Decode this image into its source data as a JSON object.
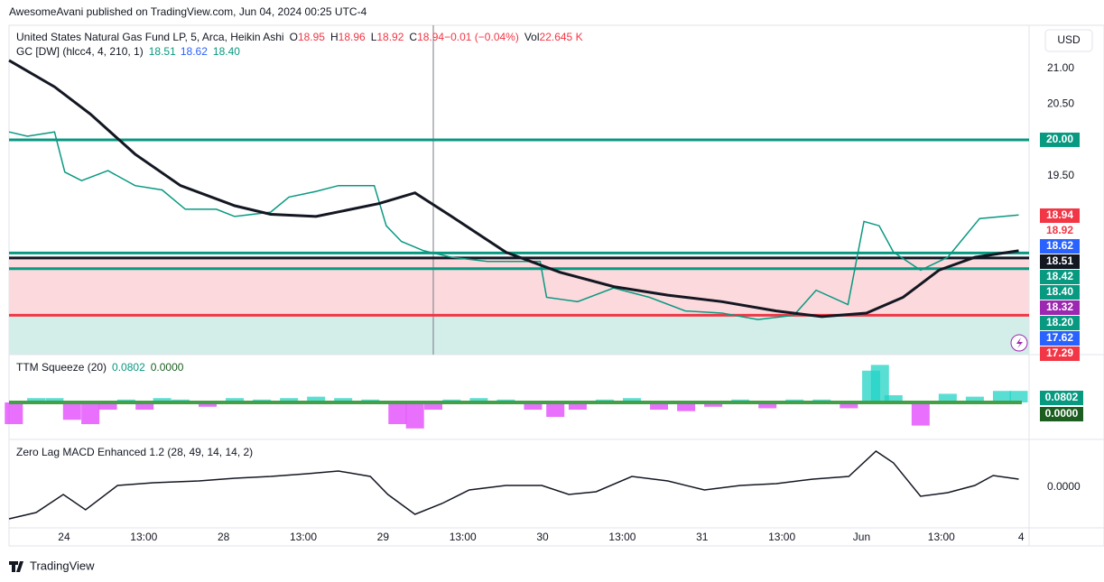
{
  "header": {
    "published": "AwesomeAvani published on TradingView.com, Jun 04, 2024 00:25 UTC-4",
    "currency": "USD",
    "footer": "TradingView"
  },
  "chart_data": [
    {
      "type": "line",
      "title": "United States Natural Gas Fund LP, 5, Arca, Heikin Ashi",
      "quote": [
        {
          "label": "O",
          "value": "18.95"
        },
        {
          "label": "H",
          "value": "18.96"
        },
        {
          "label": "L",
          "value": "18.92"
        },
        {
          "label": "C",
          "value": "18.94"
        },
        {
          "label": "",
          "value": "−0.01 (−0.04%)"
        },
        {
          "label": "Vol",
          "value": "22.645 K"
        }
      ],
      "indicator": {
        "title": "GC [DW] (hlcc4, 4, 210, 1)",
        "values": [
          "18.51",
          "18.62",
          "18.40"
        ],
        "colors": [
          "#089981",
          "#2962ff",
          "#089981"
        ]
      },
      "xlim": [
        -0.69,
        12.1
      ],
      "xticks": [
        {
          "value": 0,
          "label": "24"
        },
        {
          "value": 1,
          "label": "13:00"
        },
        {
          "value": 2,
          "label": "28"
        },
        {
          "value": 3,
          "label": "13:00"
        },
        {
          "value": 4,
          "label": "29"
        },
        {
          "value": 5,
          "label": "13:00"
        },
        {
          "value": 6,
          "label": "30"
        },
        {
          "value": 7,
          "label": "13:00"
        },
        {
          "value": 8,
          "label": "31"
        },
        {
          "value": 9,
          "label": "13:00"
        },
        {
          "value": 10,
          "label": "Jun"
        },
        {
          "value": 11,
          "label": "13:00"
        },
        {
          "value": 12,
          "label": "4"
        }
      ],
      "ylim": [
        17.0,
        21.6
      ],
      "yticks": [
        {
          "value": 21,
          "label": "21.00"
        },
        {
          "value": 20.5,
          "label": "20.50"
        },
        {
          "value": 19.5,
          "label": "19.50"
        }
      ],
      "levels": [
        {
          "value": 20.0,
          "label": "20.00",
          "color": "#089981"
        },
        {
          "value": 18.42,
          "color": "#089981"
        },
        {
          "value": 18.2,
          "color": "#089981"
        },
        {
          "value": 18.35,
          "color": "#131722"
        },
        {
          "value": 17.55,
          "color": "#f23645"
        }
      ],
      "price_labels": [
        {
          "text": "18.94",
          "bg": "#f23645",
          "fg": "#ffffff"
        },
        {
          "text": "18.92",
          "bg": "#ffffff",
          "fg": "#f23645"
        },
        {
          "text": "18.62",
          "bg": "#2962ff",
          "fg": "#ffffff"
        },
        {
          "text": "18.51",
          "bg": "#131722",
          "fg": "#ffffff"
        },
        {
          "text": "18.42",
          "bg": "#089981",
          "fg": "#ffffff"
        },
        {
          "text": "18.40",
          "bg": "#089981",
          "fg": "#ffffff"
        },
        {
          "text": "18.32",
          "bg": "#9c27b0",
          "fg": "#ffffff"
        },
        {
          "text": "18.20",
          "bg": "#089981",
          "fg": "#ffffff"
        },
        {
          "text": "17.62",
          "bg": "#2962ff",
          "fg": "#ffffff"
        },
        {
          "text": "17.29",
          "bg": "#f23645",
          "fg": "#ffffff"
        }
      ],
      "series": [
        {
          "color": "#089981",
          "x": [
            -0.69,
            -0.46,
            -0.12,
            0.01,
            0.22,
            0.55,
            0.89,
            1.23,
            1.52,
            1.91,
            2.14,
            2.59,
            2.82,
            3.16,
            3.44,
            3.89,
            4.04,
            4.23,
            4.51,
            4.86,
            5.31,
            5.97,
            6.05,
            6.44,
            6.89,
            7.34,
            7.79,
            8.25,
            8.7,
            9.15,
            9.43,
            9.83,
            10.03,
            10.22,
            10.4,
            10.74,
            11.08,
            11.48,
            11.97
          ],
          "values": [
            20.11,
            20.05,
            20.11,
            19.55,
            19.43,
            19.57,
            19.36,
            19.3,
            19.03,
            19.03,
            18.93,
            18.99,
            19.2,
            19.28,
            19.36,
            19.36,
            18.8,
            18.58,
            18.45,
            18.36,
            18.3,
            18.3,
            17.8,
            17.74,
            17.93,
            17.8,
            17.61,
            17.58,
            17.49,
            17.55,
            17.9,
            17.7,
            18.86,
            18.8,
            18.43,
            18.18,
            18.36,
            18.9,
            18.95
          ]
        },
        {
          "color": "#131722",
          "x": [
            -0.69,
            -0.12,
            0.33,
            0.89,
            1.46,
            2.14,
            2.59,
            3.16,
            3.95,
            4.4,
            4.86,
            5.54,
            6.22,
            6.89,
            7.57,
            8.25,
            8.93,
            9.5,
            10.06,
            10.52,
            10.97,
            11.42,
            11.97
          ],
          "values": [
            21.11,
            20.74,
            20.36,
            19.8,
            19.36,
            19.08,
            18.96,
            18.93,
            19.11,
            19.26,
            18.93,
            18.43,
            18.15,
            17.95,
            17.83,
            17.74,
            17.61,
            17.53,
            17.58,
            17.8,
            18.18,
            18.36,
            18.45
          ]
        }
      ]
    },
    {
      "type": "bar",
      "title": "TTM Squeeze (20)",
      "legend_values": [
        {
          "text": "0.0802",
          "color": "#089981"
        },
        {
          "text": "0.0000",
          "color": "#1b5e20"
        }
      ],
      "up_color": "#22d3c5",
      "down_color": "#e040fb",
      "ylim": [
        -0.256,
        0.3
      ],
      "x": [
        -0.63,
        -0.35,
        -0.12,
        0.1,
        0.33,
        0.55,
        0.78,
        1.01,
        1.23,
        1.46,
        1.8,
        2.14,
        2.48,
        2.82,
        3.16,
        3.5,
        3.84,
        4.18,
        4.4,
        4.63,
        4.86,
        5.2,
        5.54,
        5.88,
        6.16,
        6.44,
        6.78,
        7.12,
        7.46,
        7.8,
        8.14,
        8.48,
        8.82,
        9.16,
        9.5,
        9.84,
        10.12,
        10.23,
        10.4,
        10.74,
        11.08,
        11.42,
        11.76,
        11.97
      ],
      "values": [
        -0.15,
        0.03,
        0.03,
        -0.12,
        -0.15,
        -0.05,
        0.02,
        -0.05,
        0.03,
        0.02,
        -0.03,
        0.03,
        0.02,
        0.03,
        0.04,
        0.03,
        0.02,
        -0.15,
        -0.18,
        -0.05,
        0.02,
        0.03,
        0.02,
        -0.05,
        -0.1,
        -0.05,
        0.02,
        0.03,
        -0.05,
        -0.06,
        -0.03,
        0.02,
        -0.04,
        0.02,
        0.02,
        -0.04,
        0.22,
        0.26,
        0.05,
        -0.16,
        0.06,
        0.04,
        0.08,
        0.0802
      ]
    },
    {
      "type": "line",
      "title": "Zero Lag MACD Enhanced 1.2 (28, 49, 14, 14, 2)",
      "ylim": [
        -0.045,
        0.05
      ],
      "yticks": [
        {
          "value": 0,
          "label": "0.0000"
        }
      ],
      "series": [
        {
          "color": "#131722",
          "x": [
            -0.69,
            -0.35,
            -0.01,
            0.27,
            0.67,
            1.12,
            1.69,
            2.14,
            2.59,
            3.05,
            3.44,
            3.84,
            4.06,
            4.4,
            4.74,
            5.08,
            5.54,
            5.99,
            6.33,
            6.67,
            7.12,
            7.57,
            8.03,
            8.48,
            8.93,
            9.39,
            9.84,
            10.18,
            10.4,
            10.74,
            11.08,
            11.42,
            11.65,
            11.97
          ],
          "values": [
            -0.035,
            -0.028,
            -0.008,
            -0.025,
            0.002,
            0.005,
            0.007,
            0.01,
            0.012,
            0.015,
            0.018,
            0.012,
            -0.008,
            -0.03,
            -0.018,
            -0.003,
            0.002,
            0.002,
            -0.008,
            -0.005,
            0.012,
            0.007,
            -0.003,
            0.002,
            0.004,
            0.009,
            0.012,
            0.04,
            0.027,
            -0.01,
            -0.006,
            0.002,
            0.013,
            0.009
          ]
        }
      ]
    }
  ]
}
